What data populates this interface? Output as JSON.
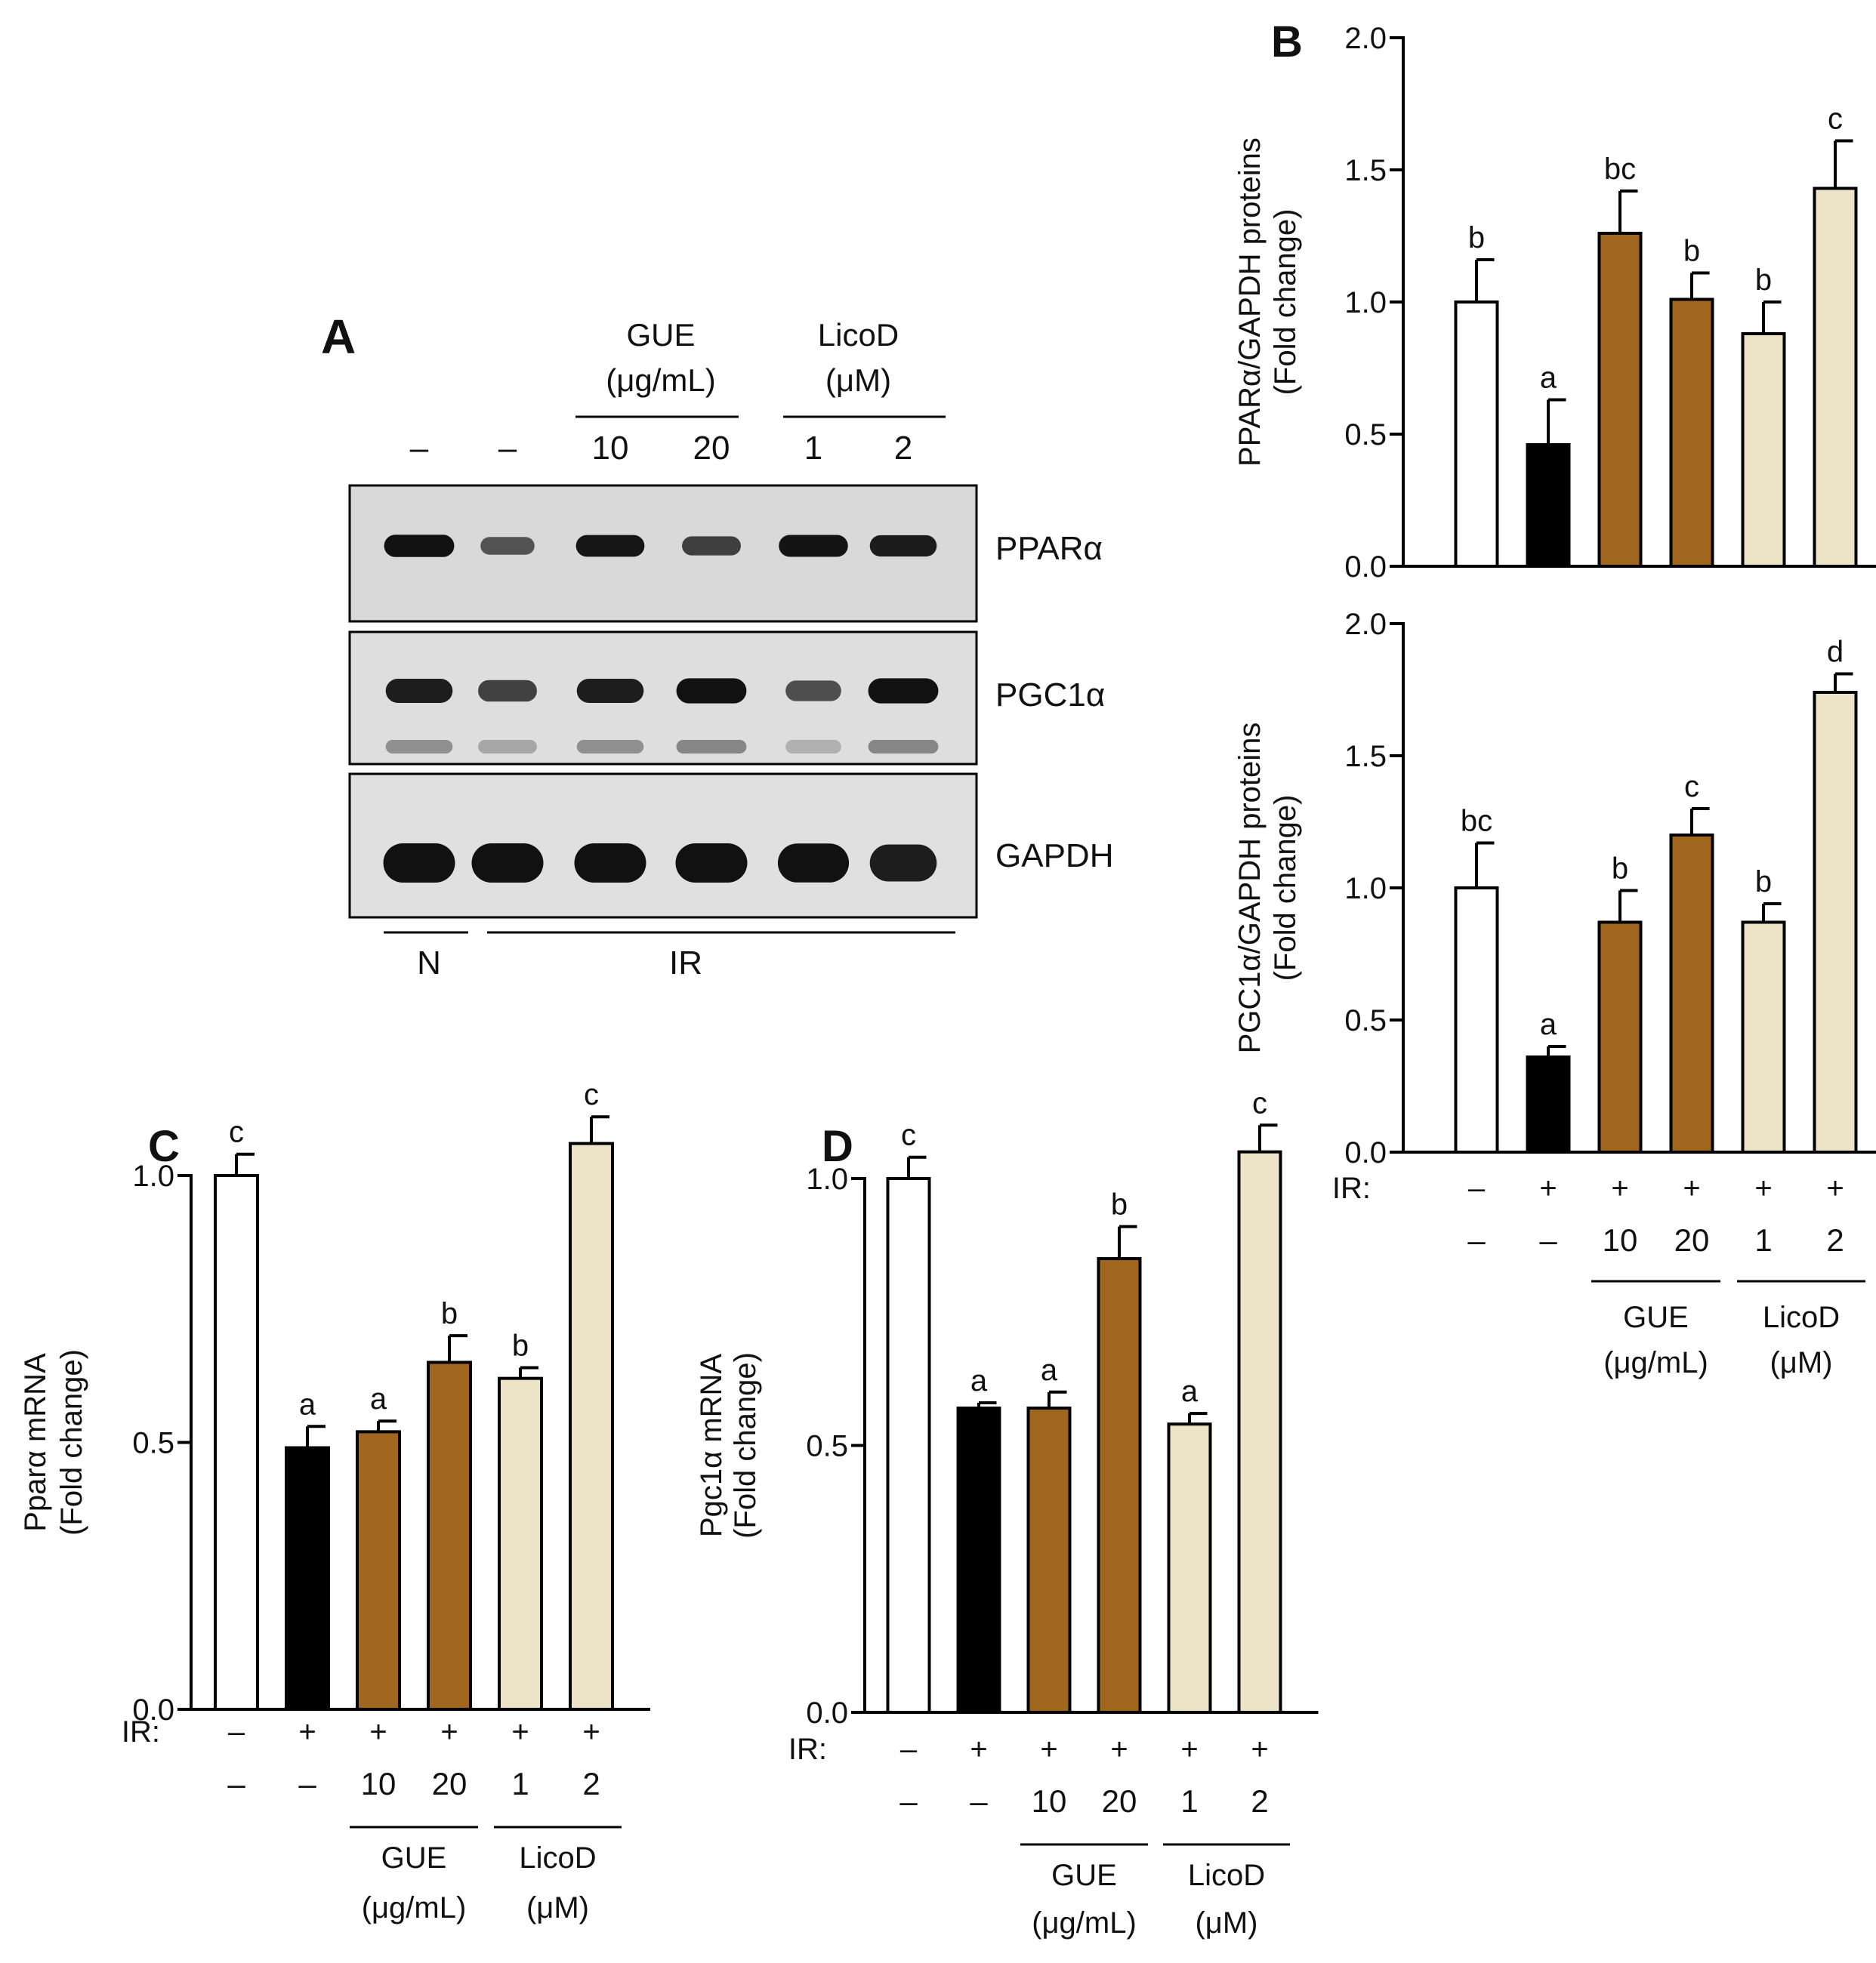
{
  "colors": {
    "control": "#ffffff",
    "ir": "#000000",
    "gue": "#a0661e",
    "licod": "#ede4c8",
    "stroke": "#000000",
    "blot_bg_ppar": "#d9d9d9",
    "blot_bg_pgc": "#dedede",
    "blot_bg_gapdh": "#e0e0e0"
  },
  "panel_a": {
    "letter": "A",
    "group_gue_line1": "GUE",
    "group_gue_line2": "(μg/mL)",
    "group_licod_line1": "LicoD",
    "group_licod_line2": "(μM)",
    "dose_labels": [
      "–",
      "–",
      "10",
      "20",
      "1",
      "2"
    ],
    "rows": [
      {
        "label": "PPARα",
        "intensities": [
          0.95,
          0.45,
          0.9,
          0.6,
          0.92,
          0.85
        ]
      },
      {
        "label": "PGC1α",
        "intensities": [
          0.85,
          0.6,
          0.85,
          0.95,
          0.5,
          0.95
        ]
      },
      {
        "label": "GAPDH",
        "intensities": [
          1.0,
          1.0,
          1.0,
          1.0,
          0.98,
          0.85
        ]
      }
    ],
    "condition_n": "N",
    "condition_ir": "IR"
  },
  "chart_data": [
    {
      "id": "B-top",
      "panel": "B",
      "type": "bar",
      "categories": [
        "N",
        "IR",
        "GUE 10",
        "GUE 20",
        "LicoD 1",
        "LicoD 2"
      ],
      "values": [
        1.0,
        0.46,
        1.26,
        1.01,
        0.88,
        1.43
      ],
      "errors": [
        0.16,
        0.17,
        0.16,
        0.1,
        0.12,
        0.18
      ],
      "letters": [
        "b",
        "a",
        "bc",
        "b",
        "b",
        "c"
      ],
      "ylabel_line1": "PPARα/GAPDH proteins",
      "ylabel_line2": "(Fold change)",
      "ylim": [
        0,
        2.0
      ],
      "yticks": [
        0,
        0.5,
        1.0,
        1.5,
        2.0
      ],
      "ytick_labels": [
        "0.0",
        "0.5",
        "1.0",
        "1.5",
        "2.0"
      ]
    },
    {
      "id": "B-bottom",
      "panel": "",
      "type": "bar",
      "categories": [
        "N",
        "IR",
        "GUE 10",
        "GUE 20",
        "LicoD 1",
        "LicoD 2"
      ],
      "values": [
        1.0,
        0.36,
        0.87,
        1.2,
        0.87,
        1.74
      ],
      "errors": [
        0.17,
        0.04,
        0.12,
        0.1,
        0.07,
        0.07
      ],
      "letters": [
        "bc",
        "a",
        "b",
        "c",
        "b",
        "d"
      ],
      "ylabel_line1": "PGC1α/GAPDH proteins",
      "ylabel_line2": "(Fold change)",
      "ylim": [
        0,
        2.0
      ],
      "yticks": [
        0,
        0.5,
        1.0,
        1.5,
        2.0
      ],
      "ytick_labels": [
        "0.0",
        "0.5",
        "1.0",
        "1.5",
        "2.0"
      ],
      "ir_label": "IR:",
      "ir_signs": [
        "–",
        "+",
        "+",
        "+",
        "+",
        "+"
      ],
      "dose_labels": [
        "–",
        "–",
        "10",
        "20",
        "1",
        "2"
      ],
      "group_gue_line1": "GUE",
      "group_gue_line2": "(μg/mL)",
      "group_licod_line1": "LicoD",
      "group_licod_line2": "(μM)"
    },
    {
      "id": "C",
      "panel": "C",
      "type": "bar",
      "categories": [
        "N",
        "IR",
        "GUE 10",
        "GUE 20",
        "LicoD 1",
        "LicoD 2"
      ],
      "values": [
        1.0,
        0.49,
        0.52,
        0.65,
        0.62,
        1.06
      ],
      "errors": [
        0.04,
        0.04,
        0.02,
        0.05,
        0.02,
        0.05
      ],
      "letters": [
        "c",
        "a",
        "a",
        "b",
        "b",
        "c"
      ],
      "ylabel_line1": "Pparα mRNA",
      "ylabel_line2": "(Fold change)",
      "ylim": [
        0,
        1.25
      ],
      "yticks": [
        0,
        0.5,
        1.0
      ],
      "ytick_labels": [
        "0.0",
        "0.5",
        "1.0"
      ],
      "ir_label": "IR:",
      "ir_signs": [
        "–",
        "+",
        "+",
        "+",
        "+",
        "+"
      ],
      "dose_labels": [
        "–",
        "–",
        "10",
        "20",
        "1",
        "2"
      ],
      "group_gue_line1": "GUE",
      "group_gue_line2": "(μg/mL)",
      "group_licod_line1": "LicoD",
      "group_licod_line2": "(μM)"
    },
    {
      "id": "D",
      "panel": "D",
      "type": "bar",
      "categories": [
        "N",
        "IR",
        "GUE 10",
        "GUE 20",
        "LicoD 1",
        "LicoD 2"
      ],
      "values": [
        1.0,
        0.57,
        0.57,
        0.85,
        0.54,
        1.05
      ],
      "errors": [
        0.04,
        0.01,
        0.03,
        0.06,
        0.02,
        0.05
      ],
      "letters": [
        "c",
        "a",
        "a",
        "b",
        "a",
        "c"
      ],
      "ylabel_line1": "Pgc1α mRNA",
      "ylabel_line2": "(Fold change)",
      "ylim": [
        0,
        1.25
      ],
      "yticks": [
        0,
        0.5,
        1.0
      ],
      "ytick_labels": [
        "0.0",
        "0.5",
        "1.0"
      ],
      "ir_label": "IR:",
      "ir_signs": [
        "–",
        "+",
        "+",
        "+",
        "+",
        "+"
      ],
      "dose_labels": [
        "–",
        "–",
        "10",
        "20",
        "1",
        "2"
      ],
      "group_gue_line1": "GUE",
      "group_gue_line2": "(μg/mL)",
      "group_licod_line1": "LicoD",
      "group_licod_line2": "(μM)"
    }
  ]
}
